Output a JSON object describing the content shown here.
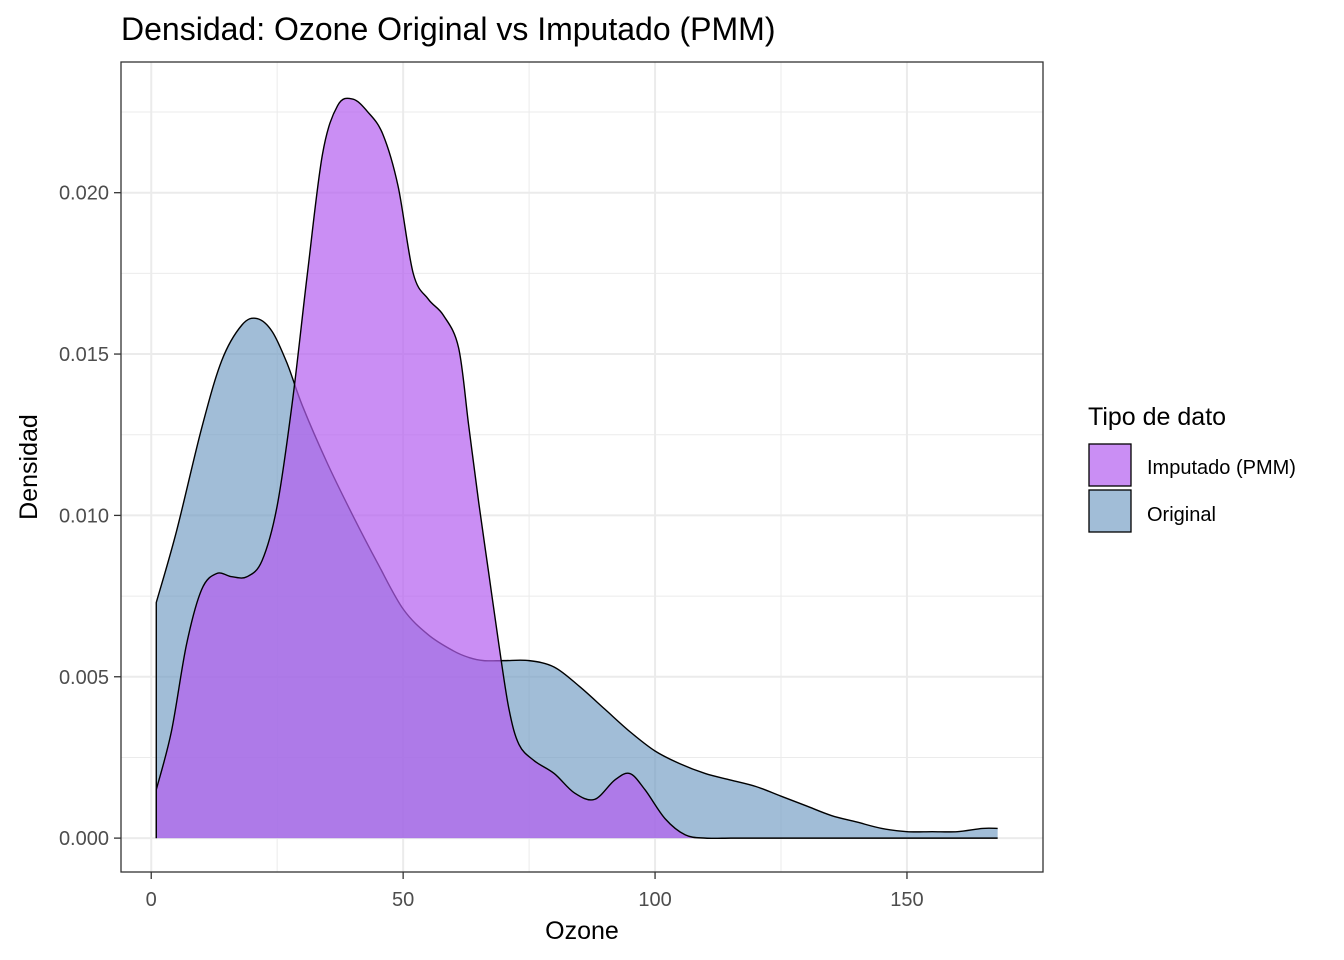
{
  "chart_data": {
    "type": "area",
    "title": "Densidad: Ozone Original vs Imputado (PMM)",
    "xlabel": "Ozone",
    "ylabel": "Densidad",
    "xlim": [
      -6,
      177
    ],
    "ylim": [
      -0.00105,
      0.02405
    ],
    "x_ticks": [
      0,
      50,
      100,
      150
    ],
    "x_tick_labels": [
      "0",
      "50",
      "100",
      "150"
    ],
    "y_ticks": [
      0.0,
      0.005,
      0.01,
      0.015,
      0.02
    ],
    "y_tick_labels": [
      "0.000",
      "0.005",
      "0.010",
      "0.015",
      "0.020"
    ],
    "grid": true,
    "legend": {
      "title": "Tipo de dato",
      "position": "right",
      "entries": [
        {
          "label": "Imputado (PMM)",
          "color": "#b35ef0"
        },
        {
          "label": "Original",
          "color": "#6f9ac2"
        }
      ]
    },
    "series": [
      {
        "name": "Original",
        "color": "#6f9ac2",
        "x": [
          1,
          5,
          10,
          14,
          18,
          21,
          24,
          27,
          30,
          35,
          40,
          45,
          50,
          55,
          60,
          63,
          66,
          70,
          75,
          80,
          85,
          90,
          95,
          100,
          105,
          110,
          115,
          120,
          125,
          130,
          135,
          140,
          145,
          150,
          155,
          160,
          165,
          168
        ],
        "y": [
          0.0073,
          0.0095,
          0.0127,
          0.0148,
          0.0159,
          0.0161,
          0.0157,
          0.0147,
          0.0134,
          0.0116,
          0.01,
          0.0085,
          0.0071,
          0.0063,
          0.0058,
          0.0056,
          0.0055,
          0.0055,
          0.0055,
          0.0053,
          0.0047,
          0.004,
          0.0033,
          0.0027,
          0.0023,
          0.002,
          0.0018,
          0.0016,
          0.0013,
          0.001,
          0.0007,
          0.0005,
          0.0003,
          0.0002,
          0.0002,
          0.0002,
          0.0003,
          0.0003
        ]
      },
      {
        "name": "Imputado (PMM)",
        "color": "#b35ef0",
        "x": [
          1,
          4,
          7,
          10,
          13,
          16,
          19,
          22,
          25,
          28,
          31,
          34,
          37,
          40,
          43,
          46,
          49,
          52,
          55,
          58,
          61,
          63,
          65,
          67,
          69,
          71,
          73,
          76,
          80,
          84,
          88,
          92,
          95,
          98,
          102,
          106,
          110,
          115,
          120,
          130,
          140,
          150,
          160,
          168
        ],
        "y": [
          0.0015,
          0.0033,
          0.006,
          0.0077,
          0.0082,
          0.0081,
          0.0081,
          0.0086,
          0.0103,
          0.0135,
          0.0175,
          0.0212,
          0.0227,
          0.0229,
          0.0225,
          0.0218,
          0.0202,
          0.0175,
          0.0167,
          0.0162,
          0.0152,
          0.0128,
          0.0104,
          0.0082,
          0.006,
          0.004,
          0.0029,
          0.0024,
          0.002,
          0.0014,
          0.0012,
          0.0018,
          0.002,
          0.0015,
          0.0006,
          0.0001,
          0.0,
          0.0,
          0.0,
          0.0,
          0.0,
          0.0,
          0.0,
          0.0
        ]
      }
    ]
  }
}
